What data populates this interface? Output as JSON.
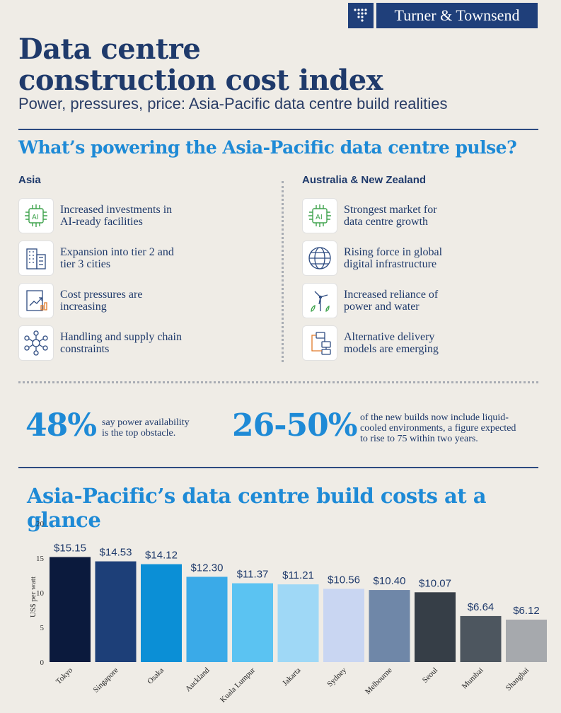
{
  "brand": {
    "name": "Turner & Townsend",
    "color": "#1f3f7a",
    "icon": "tt-dots-logo"
  },
  "header": {
    "title_line1": "Data centre",
    "title_line2": "construction cost index",
    "subtitle": "Power, pressures, price: Asia-Pacific data centre build realities"
  },
  "pulse": {
    "heading": "What’s powering the Asia-Pacific data centre pulse?",
    "asia": {
      "heading": "Asia",
      "items": [
        {
          "icon": "ai-chip-icon",
          "line1": "Increased investments in",
          "line2": "AI-ready facilities"
        },
        {
          "icon": "city-buildings-icon",
          "line1": "Expansion into tier 2 and",
          "line2": "tier 3 cities"
        },
        {
          "icon": "cost-chart-icon",
          "line1": "Cost pressures are",
          "line2": "increasing"
        },
        {
          "icon": "network-nodes-icon",
          "line1": "Handling and supply chain",
          "line2": "constraints"
        }
      ]
    },
    "anz": {
      "heading": "Australia & New Zealand",
      "items": [
        {
          "icon": "ai-chip-icon",
          "line1": "Strongest market for",
          "line2": "data centre growth"
        },
        {
          "icon": "globe-icon",
          "line1": "Rising force in global",
          "line2": "digital infrastructure"
        },
        {
          "icon": "wind-water-icon",
          "line1": "Increased reliance of",
          "line2": "power and water"
        },
        {
          "icon": "flowchart-icon",
          "line1": "Alternative delivery",
          "line2": "models are emerging"
        }
      ]
    }
  },
  "stats": [
    {
      "value": "48%",
      "line1": "say power availability",
      "line2": "is the top obstacle.",
      "line3": ""
    },
    {
      "value": "26-50%",
      "line1": "of the new builds now include liquid-",
      "line2": "cooled environments, a figure expected",
      "line3": "to rise to 75 within two years."
    }
  ],
  "chart_data": {
    "type": "bar",
    "title": "Asia-Pacific’s data centre build costs at a glance",
    "ylabel": "US$ per watt",
    "ylim": [
      0,
      20
    ],
    "yticks": [
      0,
      5,
      10,
      15,
      20
    ],
    "grid": false,
    "categories": [
      "Tokyo",
      "Singapore",
      "Osaka",
      "Auckland",
      "Kuala Lumpur",
      "Jakarta",
      "Sydney",
      "Melbourne",
      "Seoul",
      "Mumbai",
      "Shanghai"
    ],
    "values": [
      15.15,
      14.53,
      14.12,
      12.3,
      11.37,
      11.21,
      10.56,
      10.4,
      10.07,
      6.64,
      6.12
    ],
    "value_labels": [
      "$15.15",
      "$14.53",
      "$14.12",
      "$12.30",
      "$11.37",
      "$11.21",
      "$10.56",
      "$10.40",
      "$10.07",
      "$6.64",
      "$6.12"
    ],
    "colors": [
      "#0b1a3d",
      "#1d3f78",
      "#0b8fd6",
      "#3aaae8",
      "#5bc3f2",
      "#9fd8f6",
      "#c9d6f2",
      "#6f87a8",
      "#363e47",
      "#4d565f",
      "#a6a9ad"
    ]
  }
}
